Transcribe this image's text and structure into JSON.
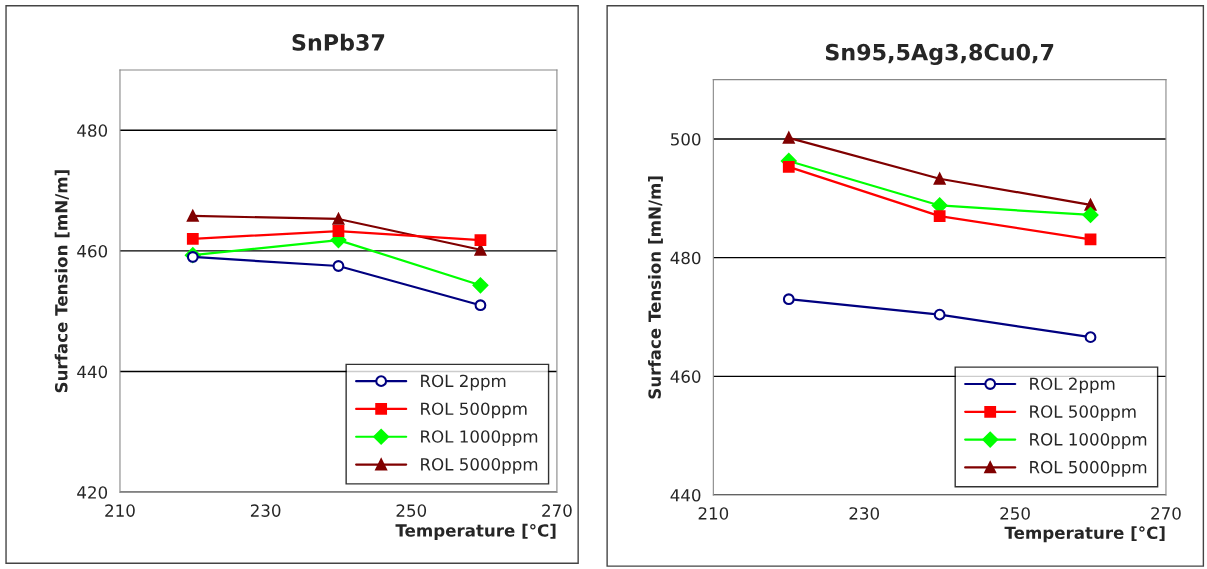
{
  "chart_data": [
    {
      "type": "line",
      "title": "SnPb37",
      "xlabel": "Temperature [°C]",
      "ylabel": "Surface Tension [mN/m]",
      "xlim": [
        210,
        270
      ],
      "xticks": [
        210,
        230,
        250,
        270
      ],
      "ylim": [
        420,
        490
      ],
      "yticks": [
        420,
        440,
        460,
        480
      ],
      "grid": "y",
      "legend": "bottom right",
      "series": [
        {
          "name": "ROL 2ppm",
          "color": "#000080",
          "marker": "circle",
          "x": [
            220,
            240,
            259.5
          ],
          "values": [
            459,
            457.5,
            451
          ]
        },
        {
          "name": "ROL 500ppm",
          "color": "#ff0000",
          "marker": "square",
          "x": [
            220,
            240,
            259.5
          ],
          "values": [
            462,
            463.3,
            461.8
          ]
        },
        {
          "name": "ROL 1000ppm",
          "color": "#00ff00",
          "marker": "diamond",
          "x": [
            220,
            240,
            259.5
          ],
          "values": [
            459.3,
            461.8,
            454.3
          ]
        },
        {
          "name": "ROL 5000ppm",
          "color": "#800000",
          "marker": "triangle",
          "x": [
            220,
            240,
            259.5
          ],
          "values": [
            465.8,
            465.3,
            460.2
          ]
        }
      ]
    },
    {
      "type": "line",
      "title": "Sn95,5Ag3,8Cu0,7",
      "xlabel": "Temperature [°C]",
      "ylabel": "Surface Tension [mN/m]",
      "xlim": [
        210,
        270
      ],
      "xticks": [
        210,
        230,
        250,
        270
      ],
      "ylim": [
        440,
        510
      ],
      "yticks": [
        440,
        460,
        480,
        500
      ],
      "grid": "y",
      "legend": "bottom right",
      "series": [
        {
          "name": "ROL 2ppm",
          "color": "#000080",
          "marker": "circle",
          "x": [
            220,
            240,
            260
          ],
          "values": [
            473.0,
            470.4,
            466.6
          ]
        },
        {
          "name": "ROL 500ppm",
          "color": "#ff0000",
          "marker": "square",
          "x": [
            220,
            240,
            260
          ],
          "values": [
            495.3,
            487.0,
            483.1
          ]
        },
        {
          "name": "ROL 1000ppm",
          "color": "#00ff00",
          "marker": "diamond",
          "x": [
            220,
            240,
            260
          ],
          "values": [
            496.3,
            488.8,
            487.2
          ]
        },
        {
          "name": "ROL 5000ppm",
          "color": "#800000",
          "marker": "triangle",
          "x": [
            220,
            240,
            260
          ],
          "values": [
            500.2,
            493.3,
            488.9
          ]
        }
      ]
    }
  ]
}
